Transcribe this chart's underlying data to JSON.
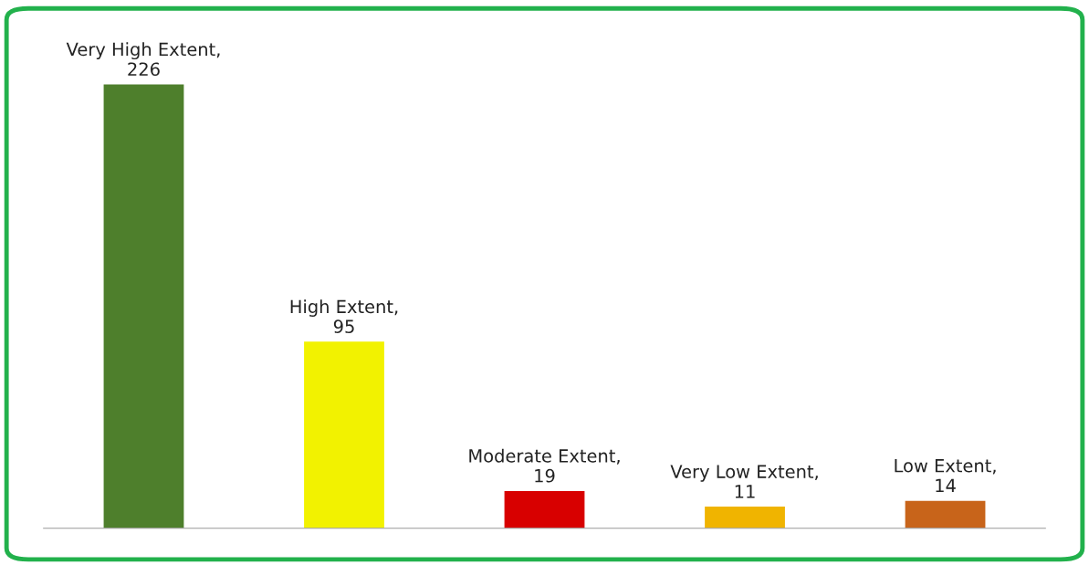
{
  "chart_data": {
    "type": "bar",
    "categories": [
      null,
      null,
      null,
      null,
      null
    ],
    "values": [
      226,
      95,
      19,
      11,
      14
    ],
    "value_labels": [
      "Very High Extent, 226",
      "High Extent, 95",
      "Moderate Extent, 19",
      "Very Low Extent, 11",
      "Low Extent, 14"
    ],
    "colors": [
      "#4e7f2c",
      "#f2f200",
      "#d80000",
      "#f0b400",
      "#c8641a"
    ]
  }
}
